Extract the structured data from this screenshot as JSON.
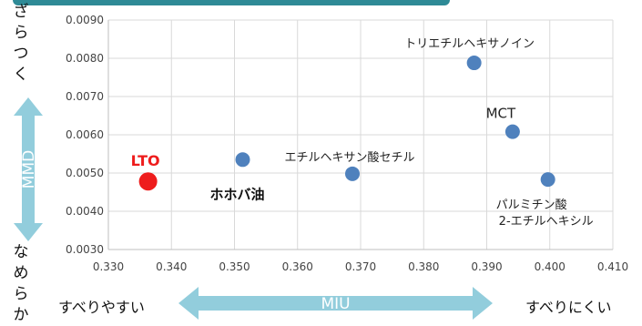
{
  "chart_data": {
    "type": "scatter",
    "title": "",
    "xlabel": "MIU",
    "ylabel": "MMD",
    "xlim": [
      0.33,
      0.41
    ],
    "ylim": [
      0.003,
      0.009
    ],
    "x_ticks": [
      "0.330",
      "0.340",
      "0.350",
      "0.360",
      "0.370",
      "0.380",
      "0.390",
      "0.400",
      "0.410"
    ],
    "y_ticks": [
      "0.0030",
      "0.0040",
      "0.0050",
      "0.0060",
      "0.0070",
      "0.0080",
      "0.0090"
    ],
    "grid": true,
    "points": [
      {
        "label": "LTO",
        "x": 0.3363,
        "y": 0.00478,
        "color": "#ee1c1c",
        "highlight": true
      },
      {
        "label": "ホホバ油",
        "x": 0.3513,
        "y": 0.00535,
        "color": "#4f81bd",
        "bold": true
      },
      {
        "label": "エチルヘキサン酸セチル",
        "x": 0.3687,
        "y": 0.00498,
        "color": "#4f81bd"
      },
      {
        "label": "トリエチルヘキサノイン",
        "x": 0.388,
        "y": 0.00788,
        "color": "#4f81bd"
      },
      {
        "label": "MCT",
        "x": 0.3941,
        "y": 0.00608,
        "color": "#4f81bd"
      },
      {
        "label": "パルミチン酸\n2-エチルヘキシル",
        "x": 0.3997,
        "y": 0.00483,
        "color": "#4f81bd"
      }
    ],
    "annotations": {
      "top_left": "ざらつく",
      "bottom_left": "なめらか",
      "bottom_left_h": "すべりやすい",
      "bottom_right_h": "すべりにくい"
    }
  },
  "colors": {
    "arrow": "#92cddc",
    "header_bar": "#2e8a96",
    "point_default": "#4f81bd",
    "point_highlight": "#ee1c1c"
  }
}
